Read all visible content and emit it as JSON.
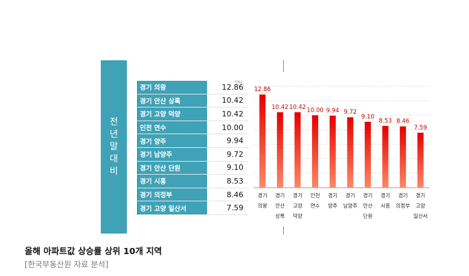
{
  "side_label": "전년말대비",
  "unit_label": "(%)",
  "table": [
    {
      "name": "경기 의왕",
      "value": "12.86"
    },
    {
      "name": "경기 안산 상록",
      "value": "10.42"
    },
    {
      "name": "경기 고양 덕양",
      "value": "10.42"
    },
    {
      "name": "인천 연수",
      "value": "10.00"
    },
    {
      "name": "경기 양주",
      "value": "9.94"
    },
    {
      "name": "경기 남양주",
      "value": "9.72"
    },
    {
      "name": "경기 안산 단원",
      "value": "9.10"
    },
    {
      "name": "경기 시흥",
      "value": "8.53"
    },
    {
      "name": "경기 의정부",
      "value": "8.46"
    },
    {
      "name": "경기 고양 일산서",
      "value": "7.59"
    }
  ],
  "chart_data": {
    "type": "bar",
    "categories": [
      [
        "경기",
        "의왕"
      ],
      [
        "경기",
        "안산",
        "상록"
      ],
      [
        "경기",
        "고양",
        "덕양"
      ],
      [
        "인천",
        "연수"
      ],
      [
        "경기",
        "양주"
      ],
      [
        "경기",
        "남양주"
      ],
      [
        "경기",
        "안산",
        "단원"
      ],
      [
        "경기",
        "시흥"
      ],
      [
        "경기",
        "의정부"
      ],
      [
        "경기",
        "고양",
        "일산서"
      ]
    ],
    "values": [
      12.86,
      10.42,
      10.42,
      10.0,
      9.94,
      9.72,
      9.1,
      8.53,
      8.46,
      7.59
    ],
    "value_labels": [
      "12.86",
      "10.42",
      "10.42",
      "10.00",
      "9.94",
      "9.72",
      "9.10",
      "8.53",
      "8.46",
      "7.59"
    ],
    "ylim": [
      0,
      14
    ],
    "grid": true,
    "colors": {
      "bar_top": "#e50000",
      "bar_bottom": "#ff8866",
      "label": "#c00000",
      "grid": "#bdbdbd"
    }
  },
  "caption": {
    "title": "올해 아파트값 상승률 상위 10개 지역",
    "source": "[한국부동산원 자료 분석]"
  }
}
